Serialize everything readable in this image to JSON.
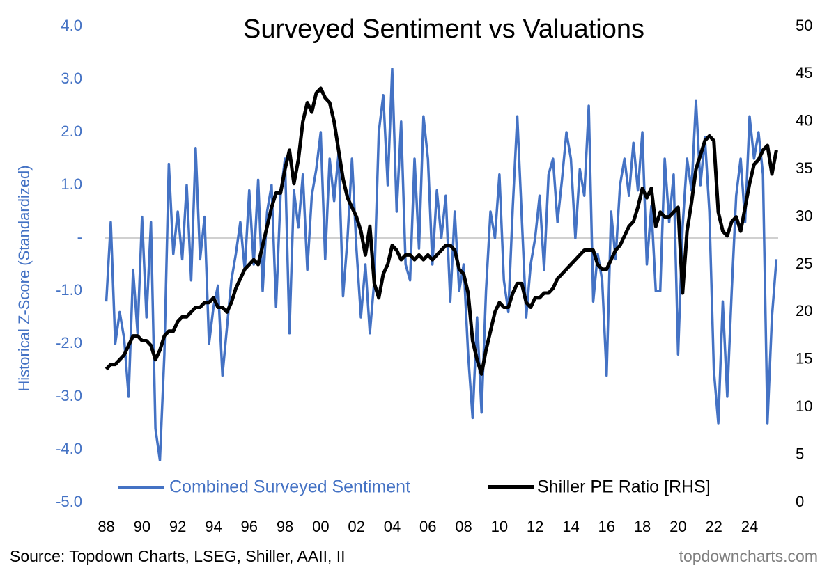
{
  "chart_data": {
    "type": "line",
    "title": "Surveyed Sentiment vs Valuations",
    "ylabel": "Historical Z-Score (Standardized)",
    "source": "Source: Topdown Charts, LSEG, Shiller, AAII, II",
    "credit": "topdowncharts.com",
    "xlim": [
      1987.9,
      2025.6
    ],
    "xticks": [
      {
        "value": 1988,
        "label": "88"
      },
      {
        "value": 1990,
        "label": "90"
      },
      {
        "value": 1992,
        "label": "92"
      },
      {
        "value": 1994,
        "label": "94"
      },
      {
        "value": 1996,
        "label": "96"
      },
      {
        "value": 1998,
        "label": "98"
      },
      {
        "value": 2000,
        "label": "00"
      },
      {
        "value": 2002,
        "label": "02"
      },
      {
        "value": 2004,
        "label": "04"
      },
      {
        "value": 2006,
        "label": "06"
      },
      {
        "value": 2008,
        "label": "08"
      },
      {
        "value": 2010,
        "label": "10"
      },
      {
        "value": 2012,
        "label": "12"
      },
      {
        "value": 2014,
        "label": "14"
      },
      {
        "value": 2016,
        "label": "16"
      },
      {
        "value": 2018,
        "label": "18"
      },
      {
        "value": 2020,
        "label": "20"
      },
      {
        "value": 2022,
        "label": "22"
      },
      {
        "value": 2024,
        "label": "24"
      }
    ],
    "ylim": [
      -5,
      4
    ],
    "yticks": [
      {
        "value": 4,
        "label": "4.0"
      },
      {
        "value": 3,
        "label": "3.0"
      },
      {
        "value": 2,
        "label": "2.0"
      },
      {
        "value": 1,
        "label": "1.0"
      },
      {
        "value": 0,
        "label": "-"
      },
      {
        "value": -1,
        "label": "-1.0"
      },
      {
        "value": -2,
        "label": "-2.0"
      },
      {
        "value": -3,
        "label": "-3.0"
      },
      {
        "value": -4,
        "label": "-4.0"
      },
      {
        "value": -5,
        "label": "-5.0"
      }
    ],
    "y2lim": [
      0,
      50
    ],
    "y2ticks": [
      0,
      5,
      10,
      15,
      20,
      25,
      30,
      35,
      40,
      45,
      50
    ],
    "x": [
      1988,
      1988.25,
      1988.5,
      1988.75,
      1989,
      1989.25,
      1989.5,
      1989.75,
      1990,
      1990.25,
      1990.5,
      1990.75,
      1991,
      1991.25,
      1991.5,
      1991.75,
      1992,
      1992.25,
      1992.5,
      1992.75,
      1993,
      1993.25,
      1993.5,
      1993.75,
      1994,
      1994.25,
      1994.5,
      1994.75,
      1995,
      1995.25,
      1995.5,
      1995.75,
      1996,
      1996.25,
      1996.5,
      1996.75,
      1997,
      1997.25,
      1997.5,
      1997.75,
      1998,
      1998.25,
      1998.5,
      1998.75,
      1999,
      1999.25,
      1999.5,
      1999.75,
      2000,
      2000.25,
      2000.5,
      2000.75,
      2001,
      2001.25,
      2001.5,
      2001.75,
      2002,
      2002.25,
      2002.5,
      2002.75,
      2003,
      2003.25,
      2003.5,
      2003.75,
      2004,
      2004.25,
      2004.5,
      2004.75,
      2005,
      2005.25,
      2005.5,
      2005.75,
      2006,
      2006.25,
      2006.5,
      2006.75,
      2007,
      2007.25,
      2007.5,
      2007.75,
      2008,
      2008.25,
      2008.5,
      2008.75,
      2009,
      2009.25,
      2009.5,
      2009.75,
      2010,
      2010.25,
      2010.5,
      2010.75,
      2011,
      2011.25,
      2011.5,
      2011.75,
      2012,
      2012.25,
      2012.5,
      2012.75,
      2013,
      2013.25,
      2013.5,
      2013.75,
      2014,
      2014.25,
      2014.5,
      2014.75,
      2015,
      2015.25,
      2015.5,
      2015.75,
      2016,
      2016.25,
      2016.5,
      2016.75,
      2017,
      2017.25,
      2017.5,
      2017.75,
      2018,
      2018.25,
      2018.5,
      2018.75,
      2019,
      2019.25,
      2019.5,
      2019.75,
      2020,
      2020.25,
      2020.5,
      2020.75,
      2021,
      2021.25,
      2021.5,
      2021.75,
      2022,
      2022.25,
      2022.5,
      2022.75,
      2023,
      2023.25,
      2023.5,
      2023.75,
      2024,
      2024.25,
      2024.5,
      2024.75,
      2025,
      2025.25,
      2025.5
    ],
    "series": [
      {
        "name": "Combined Surveyed Sentiment",
        "color": "#4472c4",
        "width": 3.5,
        "values": [
          -1.2,
          0.3,
          -2.0,
          -1.4,
          -1.9,
          -3.0,
          -0.6,
          -1.8,
          0.4,
          -1.5,
          0.3,
          -3.6,
          -4.2,
          -2.2,
          1.4,
          -0.3,
          0.5,
          -0.4,
          1.0,
          -0.8,
          1.7,
          -0.4,
          0.4,
          -2.0,
          -1.3,
          -0.9,
          -2.6,
          -1.7,
          -0.8,
          -0.3,
          0.3,
          -0.6,
          0.9,
          -0.5,
          1.1,
          -1.0,
          0.5,
          1.0,
          -1.3,
          0.8,
          1.5,
          -1.8,
          0.9,
          0.2,
          1.2,
          -0.6,
          0.8,
          1.3,
          2.0,
          -0.4,
          1.5,
          0.7,
          1.6,
          -1.1,
          0.0,
          1.5,
          -0.2,
          -1.5,
          -0.5,
          -1.8,
          -0.8,
          2.0,
          2.7,
          1.0,
          3.2,
          0.5,
          2.2,
          -0.5,
          -0.8,
          1.5,
          -0.2,
          2.3,
          1.5,
          -0.5,
          0.9,
          0.0,
          0.8,
          -1.2,
          0.5,
          -1.0,
          -0.5,
          -2.2,
          -3.4,
          -1.5,
          -3.3,
          -1.0,
          0.5,
          0.0,
          1.2,
          -0.8,
          -1.4,
          0.6,
          2.3,
          0.4,
          -1.5,
          -0.5,
          0.0,
          0.8,
          -0.6,
          1.2,
          1.5,
          0.3,
          1.1,
          2.0,
          1.5,
          0.0,
          1.3,
          0.8,
          2.5,
          -1.2,
          -0.3,
          -0.8,
          -2.6,
          0.5,
          -0.4,
          1.0,
          1.5,
          0.8,
          1.8,
          0.9,
          2.0,
          -0.5,
          0.6,
          -1.0,
          -1.0,
          1.5,
          0.3,
          1.2,
          -2.2,
          0.2,
          1.5,
          0.9,
          2.6,
          1.0,
          1.9,
          0.5,
          -2.5,
          -3.5,
          -1.2,
          -3.0,
          -1.0,
          0.8,
          1.5,
          0.3,
          2.3,
          1.5,
          2.0,
          1.2,
          -3.5,
          -1.5,
          -0.4
        ]
      },
      {
        "name": "Shiller PE Ratio [RHS]",
        "color": "#000000",
        "width": 5,
        "axis": "y2",
        "values": [
          14,
          14.5,
          14.5,
          15,
          15.5,
          16.5,
          17.5,
          17.5,
          17,
          17,
          16.5,
          15,
          16,
          17.5,
          18,
          18,
          19,
          19.5,
          19.5,
          20,
          20.5,
          20.5,
          21,
          21,
          21.5,
          20.5,
          20.5,
          20,
          21,
          22.5,
          23.5,
          24.5,
          25,
          25.5,
          25,
          27,
          29,
          31,
          32.5,
          32.5,
          35,
          37,
          33.5,
          36,
          40,
          42,
          41,
          43,
          43.5,
          42.5,
          42,
          40,
          37,
          34,
          32,
          31,
          30,
          28.5,
          26,
          29,
          23,
          21.5,
          24,
          25,
          27,
          26.5,
          25.5,
          26,
          26,
          25.5,
          26,
          25.5,
          26,
          25.5,
          26,
          26.5,
          27,
          27,
          26.5,
          24.5,
          24,
          22,
          17,
          15,
          13.5,
          16,
          18,
          20,
          21,
          20.5,
          20.5,
          22,
          23,
          23,
          21,
          20.5,
          21.5,
          21.5,
          22,
          22,
          22.5,
          23.5,
          24,
          24.5,
          25,
          25.5,
          26,
          26.5,
          26.5,
          26.5,
          25,
          24.5,
          24.5,
          25.5,
          26.5,
          27,
          28,
          29,
          29.5,
          31,
          33,
          32,
          33,
          29,
          30.5,
          30,
          30,
          30.5,
          31,
          22,
          28.5,
          31.5,
          35,
          36.5,
          38,
          38.5,
          38,
          30.5,
          28.5,
          28,
          29.5,
          30,
          28.5,
          31,
          33.5,
          35.5,
          36,
          37,
          37.5,
          34.5,
          37
        ]
      }
    ]
  }
}
